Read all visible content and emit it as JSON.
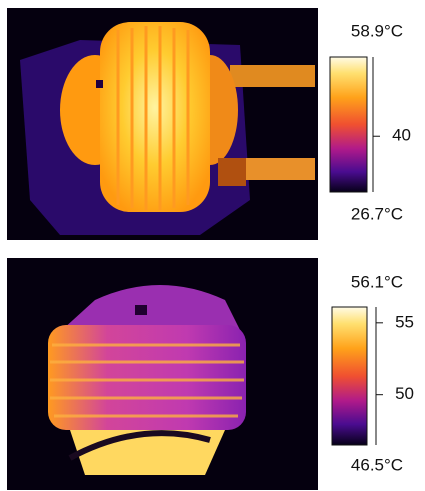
{
  "panels": [
    {
      "max_label": "58.9°C",
      "min_label": "26.7°C",
      "scale": [
        26.7,
        58.9
      ],
      "ticks": [
        40
      ]
    },
    {
      "max_label": "56.1°C",
      "min_label": "46.5°C",
      "scale": [
        46.5,
        56.1
      ],
      "ticks": [
        55,
        50
      ]
    }
  ]
}
